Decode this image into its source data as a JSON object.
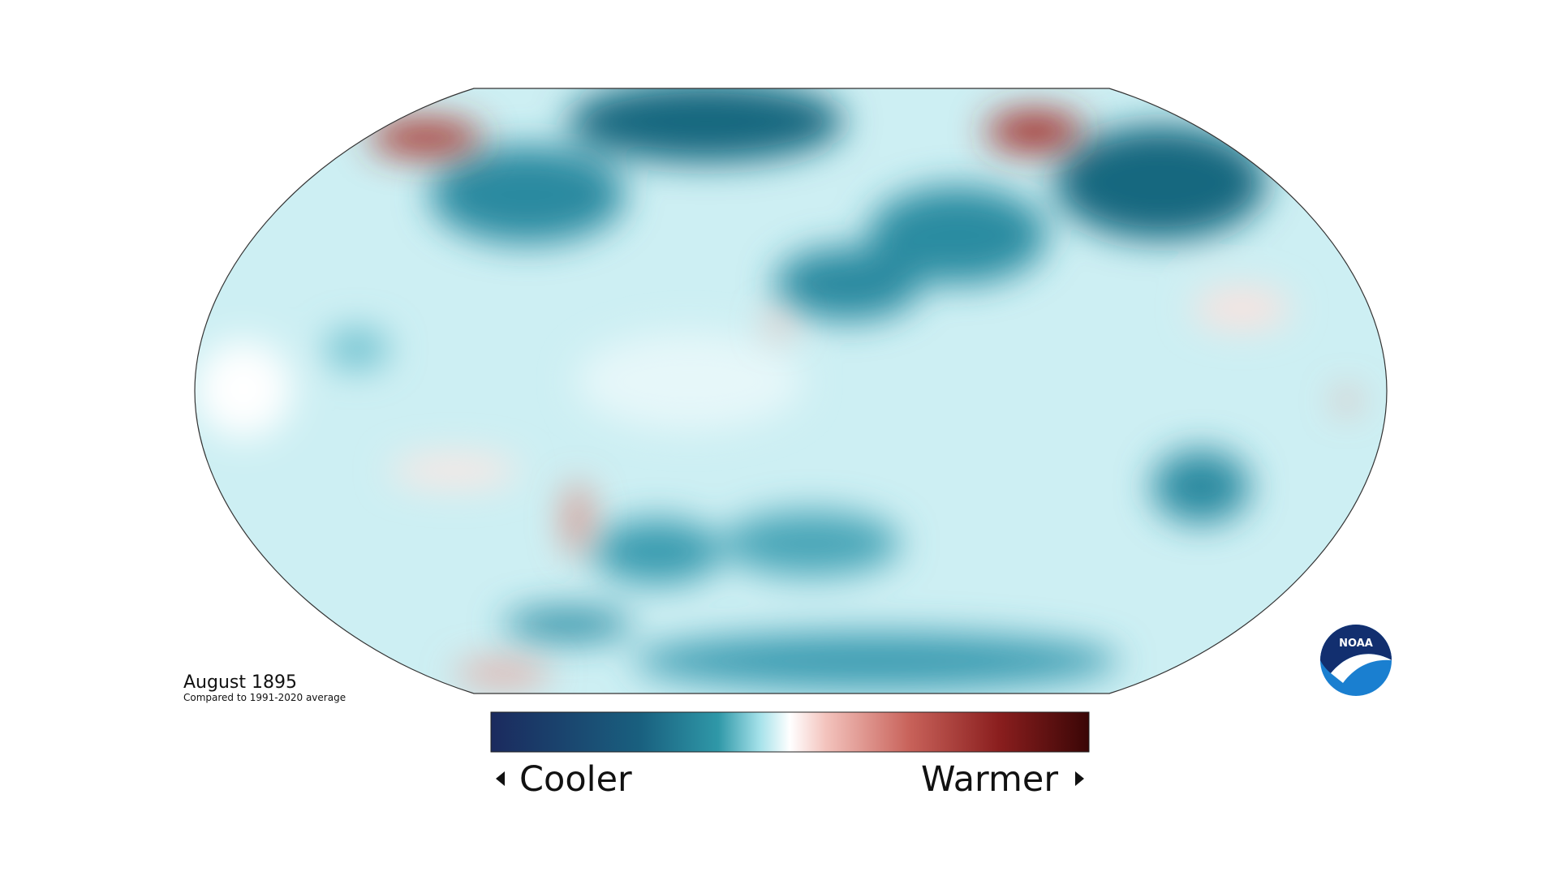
{
  "title": "August 1895",
  "subtitle": "Compared to 1991-2020 average",
  "legend": {
    "low_label": "Cooler",
    "high_label": "Warmer"
  },
  "logo": "NOAA"
}
